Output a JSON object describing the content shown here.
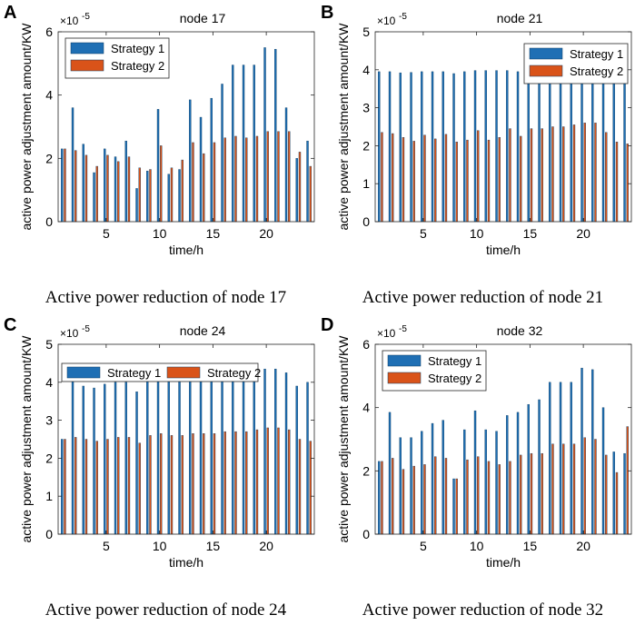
{
  "chart_data": [
    {
      "type": "bar",
      "panel_label": "A",
      "title": "node 17",
      "caption": "Active power reduction of node 17",
      "xlabel": "time/h",
      "ylabel": "active power adjustment amount/KW",
      "y_exponent_base": "×10",
      "y_exponent": "-5",
      "ylim": [
        0,
        6
      ],
      "yticks": [
        0,
        2,
        4,
        6
      ],
      "xticks": [
        5,
        10,
        15,
        20
      ],
      "xlim": [
        0.5,
        24.5
      ],
      "legend_position": "top-left",
      "categories": [
        1,
        2,
        3,
        4,
        5,
        6,
        7,
        8,
        9,
        10,
        11,
        12,
        13,
        14,
        15,
        16,
        17,
        18,
        19,
        20,
        21,
        22,
        23,
        24
      ],
      "series": [
        {
          "name": "Strategy 1",
          "color": "#1f6fb4",
          "values": [
            2.3,
            3.6,
            2.45,
            1.55,
            2.3,
            2.05,
            2.55,
            1.05,
            1.6,
            3.55,
            1.5,
            1.65,
            3.85,
            3.3,
            3.9,
            4.35,
            4.95,
            4.95,
            4.95,
            5.5,
            5.45,
            3.6,
            2.0,
            2.55
          ]
        },
        {
          "name": "Strategy 2",
          "color": "#d95319",
          "values": [
            2.3,
            2.25,
            2.1,
            1.75,
            2.1,
            1.9,
            2.05,
            1.7,
            1.65,
            2.4,
            1.7,
            1.95,
            2.5,
            2.15,
            2.5,
            2.65,
            2.7,
            2.65,
            2.7,
            2.85,
            2.85,
            2.85,
            2.2,
            1.75
          ]
        }
      ]
    },
    {
      "type": "bar",
      "panel_label": "B",
      "title": "node 21",
      "caption": "Active power reduction of node 21",
      "xlabel": "time/h",
      "ylabel": "active power adjustment amount/KW",
      "y_exponent_base": "×10",
      "y_exponent": "-5",
      "ylim": [
        0,
        5
      ],
      "yticks": [
        0,
        1,
        2,
        3,
        4,
        5
      ],
      "xticks": [
        5,
        10,
        15,
        20
      ],
      "xlim": [
        0.5,
        24.5
      ],
      "legend_position": "top-right",
      "categories": [
        1,
        2,
        3,
        4,
        5,
        6,
        7,
        8,
        9,
        10,
        11,
        12,
        13,
        14,
        15,
        16,
        17,
        18,
        19,
        20,
        21,
        22,
        23,
        24
      ],
      "series": [
        {
          "name": "Strategy 1",
          "color": "#1f6fb4",
          "values": [
            3.95,
            3.95,
            3.92,
            3.93,
            3.95,
            3.95,
            3.95,
            3.9,
            3.95,
            3.98,
            3.98,
            3.98,
            3.98,
            3.95,
            3.95,
            3.95,
            3.95,
            3.95,
            3.95,
            3.95,
            3.95,
            3.95,
            3.95,
            3.93
          ]
        },
        {
          "name": "Strategy 2",
          "color": "#d95319",
          "values": [
            2.35,
            2.32,
            2.22,
            2.12,
            2.28,
            2.18,
            2.3,
            2.1,
            2.15,
            2.4,
            2.15,
            2.22,
            2.45,
            2.25,
            2.45,
            2.45,
            2.5,
            2.5,
            2.55,
            2.6,
            2.6,
            2.35,
            2.1,
            2.05
          ]
        }
      ]
    },
    {
      "type": "bar",
      "panel_label": "C",
      "title": "node 24",
      "caption": "Active power reduction of node 24",
      "xlabel": "time/h",
      "ylabel": "active power adjustment amount/KW",
      "y_exponent_base": "×10",
      "y_exponent": "-5",
      "ylim": [
        0,
        5
      ],
      "yticks": [
        0,
        1,
        2,
        3,
        4,
        5
      ],
      "xticks": [
        5,
        10,
        15,
        20
      ],
      "xlim": [
        0.5,
        24.5
      ],
      "legend_position": "top",
      "categories": [
        1,
        2,
        3,
        4,
        5,
        6,
        7,
        8,
        9,
        10,
        11,
        12,
        13,
        14,
        15,
        16,
        17,
        18,
        19,
        20,
        21,
        22,
        23,
        24
      ],
      "series": [
        {
          "name": "Strategy 1",
          "color": "#1f6fb4",
          "values": [
            2.5,
            4.1,
            3.9,
            3.85,
            3.95,
            4.0,
            4.0,
            3.75,
            4.1,
            4.25,
            4.1,
            4.05,
            4.25,
            4.25,
            4.3,
            4.3,
            4.35,
            4.35,
            4.35,
            4.35,
            4.35,
            4.25,
            3.9,
            4.0
          ]
        },
        {
          "name": "Strategy 2",
          "color": "#d95319",
          "values": [
            2.5,
            2.55,
            2.5,
            2.45,
            2.5,
            2.55,
            2.55,
            2.4,
            2.6,
            2.65,
            2.6,
            2.6,
            2.65,
            2.65,
            2.65,
            2.7,
            2.7,
            2.7,
            2.75,
            2.8,
            2.8,
            2.75,
            2.5,
            2.45
          ]
        }
      ]
    },
    {
      "type": "bar",
      "panel_label": "D",
      "title": "node 32",
      "caption": "Active power reduction of node 32",
      "xlabel": "time/h",
      "ylabel": "active power adjustment amount/KW",
      "y_exponent_base": "×10",
      "y_exponent": "-5",
      "ylim": [
        0,
        6
      ],
      "yticks": [
        0,
        2,
        4,
        6
      ],
      "xticks": [
        5,
        10,
        15,
        20
      ],
      "xlim": [
        0.5,
        24.5
      ],
      "legend_position": "top-left",
      "categories": [
        1,
        2,
        3,
        4,
        5,
        6,
        7,
        8,
        9,
        10,
        11,
        12,
        13,
        14,
        15,
        16,
        17,
        18,
        19,
        20,
        21,
        22,
        23,
        24
      ],
      "series": [
        {
          "name": "Strategy 1",
          "color": "#1f6fb4",
          "values": [
            2.3,
            3.85,
            3.05,
            3.05,
            3.25,
            3.5,
            3.6,
            1.75,
            3.3,
            3.9,
            3.3,
            3.25,
            3.75,
            3.85,
            4.1,
            4.25,
            4.8,
            4.8,
            4.8,
            5.25,
            5.2,
            4.0,
            2.6,
            2.55
          ]
        },
        {
          "name": "Strategy 2",
          "color": "#d95319",
          "values": [
            2.3,
            2.4,
            2.05,
            2.15,
            2.2,
            2.45,
            2.4,
            1.75,
            2.35,
            2.45,
            2.3,
            2.2,
            2.3,
            2.5,
            2.55,
            2.55,
            2.85,
            2.85,
            2.85,
            3.05,
            3.0,
            2.5,
            1.95,
            3.4
          ]
        }
      ]
    }
  ]
}
